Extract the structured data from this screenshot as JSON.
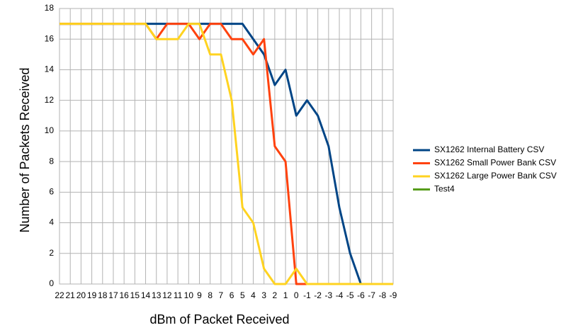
{
  "chart_data": {
    "type": "line",
    "x_label": "dBm of Packet Received",
    "y_label": "Number of Packets Received",
    "categories": [
      "22",
      "21",
      "20",
      "19",
      "18",
      "17",
      "16",
      "15",
      "14",
      "13",
      "12",
      "11",
      "10",
      "9",
      "8",
      "7",
      "6",
      "5",
      "4",
      "3",
      "2",
      "1",
      "0",
      "-1",
      "-2",
      "-3",
      "-4",
      "-5",
      "-6",
      "-7",
      "-8",
      "-9"
    ],
    "series": [
      {
        "name": "SX1262 Internal Battery CSV",
        "color": "#004586",
        "values": [
          17,
          17,
          17,
          17,
          17,
          17,
          17,
          17,
          17,
          17,
          17,
          17,
          17,
          17,
          17,
          17,
          17,
          17,
          16,
          15,
          13,
          14,
          11,
          12,
          11,
          9,
          5,
          2,
          0,
          0,
          0,
          0
        ]
      },
      {
        "name": "SX1262 Small Power Bank CSV",
        "color": "#ff420e",
        "values": [
          17,
          17,
          17,
          17,
          17,
          17,
          17,
          17,
          17,
          16,
          17,
          17,
          17,
          16,
          17,
          17,
          16,
          16,
          15,
          16,
          9,
          8,
          0,
          0,
          0,
          0,
          0,
          0,
          0,
          0,
          0,
          0
        ]
      },
      {
        "name": "SX1262 Large Power Bank CSV",
        "color": "#ffd320",
        "values": [
          17,
          17,
          17,
          17,
          17,
          17,
          17,
          17,
          17,
          16,
          16,
          16,
          17,
          17,
          15,
          15,
          12,
          5,
          4,
          1,
          0,
          0,
          1,
          0,
          0,
          0,
          0,
          0,
          0,
          0,
          0,
          0
        ]
      },
      {
        "name": "Test4",
        "color": "#579d1c",
        "values": [
          null,
          null,
          null,
          null,
          null,
          null,
          null,
          null,
          null,
          null,
          null,
          null,
          null,
          null,
          null,
          null,
          null,
          null,
          null,
          null,
          null,
          null,
          null,
          null,
          null,
          null,
          null,
          null,
          null,
          null,
          null,
          null
        ]
      }
    ],
    "ylim": [
      0,
      18
    ],
    "yticks": [
      0,
      2,
      4,
      6,
      8,
      10,
      12,
      14,
      16,
      18
    ],
    "grid": true,
    "legend": "right"
  }
}
